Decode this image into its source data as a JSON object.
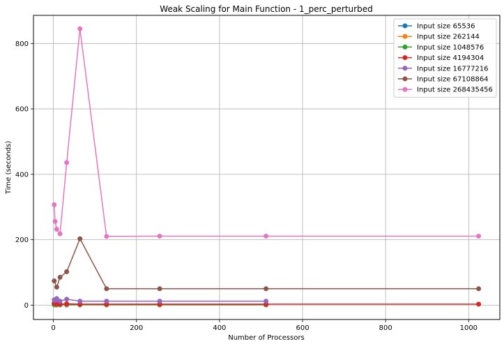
{
  "chart_data": {
    "type": "line",
    "title": "Weak Scaling for Main Function - 1_perc_perturbed",
    "xlabel": "Number of Processors",
    "ylabel": "Time (seconds)",
    "xlim": [
      -48,
      1075
    ],
    "ylim": [
      -44,
      886
    ],
    "xticks": [
      0,
      200,
      400,
      600,
      800,
      1000
    ],
    "yticks": [
      0,
      200,
      400,
      600,
      800
    ],
    "grid": true,
    "legend_position": "top-right",
    "series": [
      {
        "name": "Input size 65536",
        "color": "#1f77b4",
        "x": [
          2,
          4,
          8,
          16,
          32,
          64,
          128,
          256,
          512
        ],
        "y": [
          0.8,
          0.7,
          0.6,
          0.6,
          0.6,
          0.6,
          0.6,
          0.6,
          0.6
        ]
      },
      {
        "name": "Input size 262144",
        "color": "#ff7f0e",
        "x": [
          2,
          4,
          8,
          16,
          32,
          64,
          128,
          256,
          512
        ],
        "y": [
          1.5,
          1.2,
          1.0,
          1.0,
          1.2,
          1.0,
          1.0,
          1.0,
          1.0
        ]
      },
      {
        "name": "Input size 1048576",
        "color": "#2ca02c",
        "x": [
          2,
          4,
          8,
          16,
          32,
          64,
          128,
          256,
          512
        ],
        "y": [
          3,
          2.5,
          2,
          2,
          2.5,
          2,
          2,
          2,
          2
        ]
      },
      {
        "name": "Input size 4194304",
        "color": "#d62728",
        "x": [
          2,
          4,
          8,
          16,
          32,
          64,
          128,
          256,
          512,
          1024
        ],
        "y": [
          6,
          5,
          4,
          3,
          4,
          3,
          3,
          3,
          3,
          3
        ]
      },
      {
        "name": "Input size 16777216",
        "color": "#9467bd",
        "x": [
          2,
          4,
          8,
          16,
          32,
          64,
          128,
          256,
          512
        ],
        "y": [
          16,
          14,
          20,
          12,
          18,
          12,
          12,
          12,
          12
        ]
      },
      {
        "name": "Input size 67108864",
        "color": "#8c564b",
        "x": [
          2,
          8,
          16,
          32,
          64,
          128,
          256,
          512,
          1024
        ],
        "y": [
          74,
          55,
          85,
          102,
          203,
          50,
          50,
          50,
          50
        ]
      },
      {
        "name": "Input size 268435456",
        "color": "#e377c2",
        "x": [
          2,
          4,
          8,
          16,
          32,
          64,
          128,
          256,
          512,
          1024
        ],
        "y": [
          307,
          256,
          232,
          218,
          436,
          845,
          210,
          211,
          211,
          211
        ]
      }
    ]
  }
}
